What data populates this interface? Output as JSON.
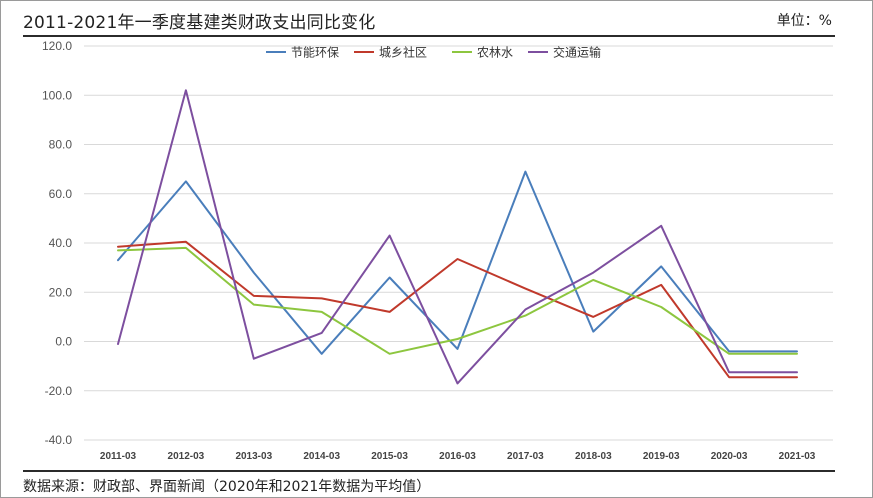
{
  "header": {
    "title": "2011-2021年一季度基建类财政支出同比变化",
    "unit": "单位：%"
  },
  "footer": {
    "source": "数据来源：财政部、界面新闻（2020年和2021年数据为平均值）"
  },
  "chart_data": {
    "type": "line",
    "categories": [
      "2011-03",
      "2012-03",
      "2013-03",
      "2014-03",
      "2015-03",
      "2016-03",
      "2017-03",
      "2018-03",
      "2019-03",
      "2020-03",
      "2021-03"
    ],
    "ylim": [
      -40,
      120
    ],
    "yticks": [
      -40,
      -20,
      0,
      20,
      40,
      60,
      80,
      100,
      120
    ],
    "ytick_labels": [
      "-40.0",
      "-20.0",
      "0.0",
      "20.0",
      "40.0",
      "60.0",
      "80.0",
      "100.0",
      "120.0"
    ],
    "grid": true,
    "legend_position": "top",
    "series": [
      {
        "name": "节能环保",
        "color": "#4a7ebb",
        "values": [
          33,
          65,
          28,
          -5,
          26,
          -3,
          69,
          4,
          30.5,
          -4,
          -4
        ]
      },
      {
        "name": "城乡社区",
        "color": "#c0392b",
        "values": [
          38.5,
          40.5,
          18.5,
          17.5,
          12,
          33.5,
          21.5,
          10,
          23,
          -14.5,
          -14.5
        ]
      },
      {
        "name": "农林水",
        "color": "#8dc63f",
        "values": [
          37,
          38,
          15,
          12,
          -5,
          1,
          10.5,
          25,
          14,
          -5,
          -5
        ]
      },
      {
        "name": "交通运输",
        "color": "#7d4f9f",
        "values": [
          -1,
          102,
          -7,
          3.5,
          43,
          -17,
          13,
          28,
          47,
          -12.5,
          -12.5
        ]
      }
    ]
  }
}
